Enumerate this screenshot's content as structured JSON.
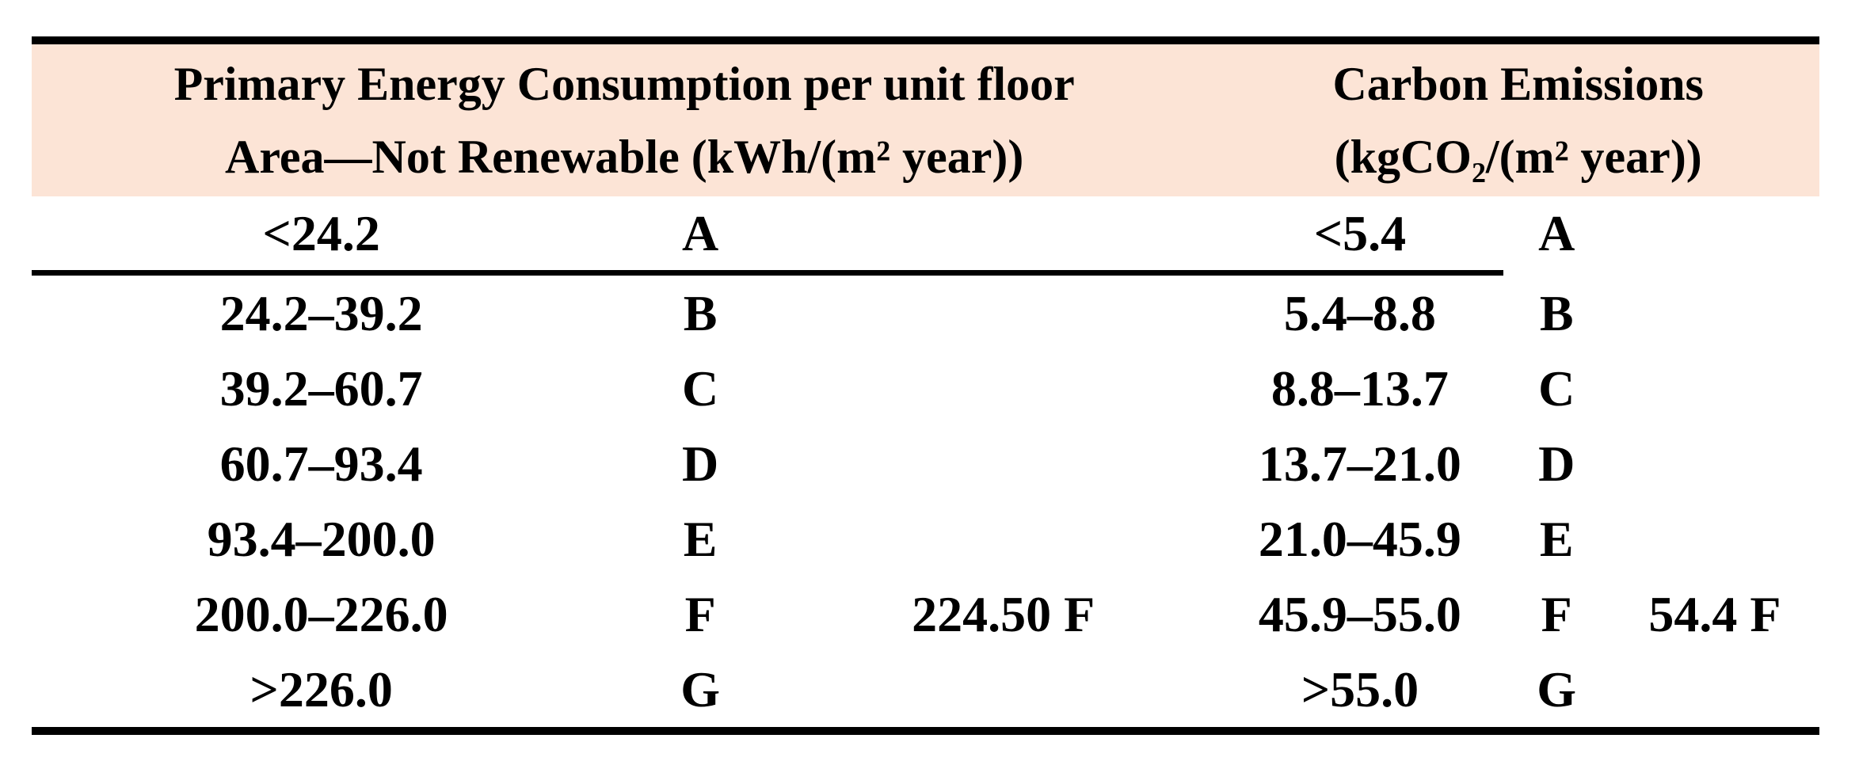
{
  "table": {
    "title_region": "Energy performance classification table",
    "colors": {
      "header_background": "#fce4d6",
      "rule_color": "#000000",
      "text_color": "#000000",
      "page_background": "#ffffff"
    },
    "header": {
      "energy": {
        "line1": "Primary Energy Consumption per unit floor",
        "line2": "Area—Not Renewable (kWh/(m² year))"
      },
      "carbon": {
        "line1": "Carbon Emissions",
        "line2": "(kgCO₂/(m² year))"
      }
    },
    "rows": [
      {
        "energy_range": "<24.2",
        "energy_grade": "A",
        "energy_value": "",
        "carbon_range": "<5.4",
        "carbon_grade": "A",
        "carbon_value": ""
      },
      {
        "energy_range": "24.2–39.2",
        "energy_grade": "B",
        "energy_value": "",
        "carbon_range": "5.4–8.8",
        "carbon_grade": "B",
        "carbon_value": ""
      },
      {
        "energy_range": "39.2–60.7",
        "energy_grade": "C",
        "energy_value": "",
        "carbon_range": "8.8–13.7",
        "carbon_grade": "C",
        "carbon_value": ""
      },
      {
        "energy_range": "60.7–93.4",
        "energy_grade": "D",
        "energy_value": "",
        "carbon_range": "13.7–21.0",
        "carbon_grade": "D",
        "carbon_value": ""
      },
      {
        "energy_range": "93.4–200.0",
        "energy_grade": "E",
        "energy_value": "",
        "carbon_range": "21.0–45.9",
        "carbon_grade": "E",
        "carbon_value": ""
      },
      {
        "energy_range": "200.0–226.0",
        "energy_grade": "F",
        "energy_value": "224.50 F",
        "carbon_range": "45.9–55.0",
        "carbon_grade": "F",
        "carbon_value": "54.4 F"
      },
      {
        "energy_range": ">226.0",
        "energy_grade": "G",
        "energy_value": "",
        "carbon_range": ">55.0",
        "carbon_grade": "G",
        "carbon_value": ""
      }
    ]
  }
}
